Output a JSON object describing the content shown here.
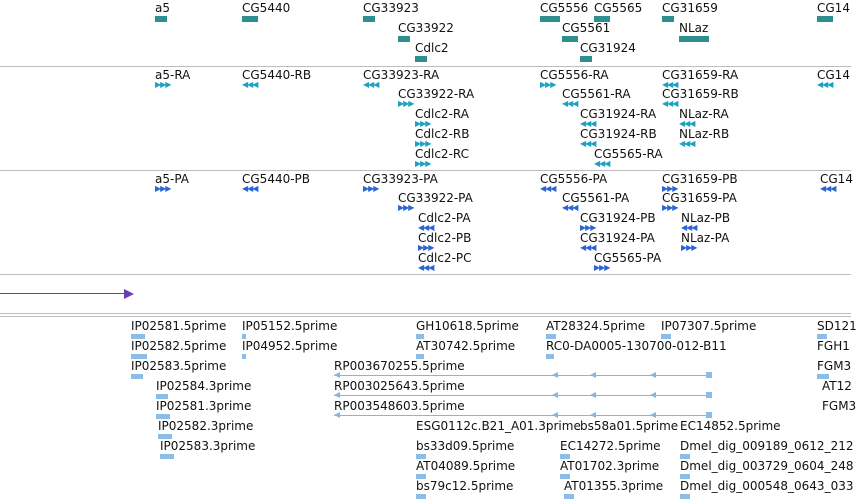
{
  "colors": {
    "gene": "#2f8f8f",
    "transcript": "#1ba1c1",
    "protein": "#2a64d6",
    "est": "#8bbde6",
    "ruler": "#6a3fb1",
    "separator": "#bdbdbd"
  },
  "genes": [
    {
      "label": "a5"
    },
    {
      "label": "CG5440"
    },
    {
      "label": "CG33923"
    },
    {
      "label": "CG5556"
    },
    {
      "label": "CG5565"
    },
    {
      "label": "CG31659"
    },
    {
      "label": "CG14"
    },
    {
      "label": "CG33922"
    },
    {
      "label": "CG5561"
    },
    {
      "label": "NLaz"
    },
    {
      "label": "Cdlc2"
    },
    {
      "label": "CG31924"
    }
  ],
  "transcripts": [
    {
      "label": "a5-RA"
    },
    {
      "label": "CG5440-RB"
    },
    {
      "label": "CG33923-RA"
    },
    {
      "label": "CG5556-RA"
    },
    {
      "label": "CG31659-RA"
    },
    {
      "label": "CG14"
    },
    {
      "label": "CG33922-RA"
    },
    {
      "label": "CG5561-RA"
    },
    {
      "label": "CG31659-RB"
    },
    {
      "label": "Cdlc2-RA"
    },
    {
      "label": "CG31924-RA"
    },
    {
      "label": "NLaz-RA"
    },
    {
      "label": "Cdlc2-RB"
    },
    {
      "label": "CG31924-RB"
    },
    {
      "label": "NLaz-RB"
    },
    {
      "label": "Cdlc2-RC"
    },
    {
      "label": "CG5565-RA"
    }
  ],
  "proteins": [
    {
      "label": "a5-PA"
    },
    {
      "label": "CG5440-PB"
    },
    {
      "label": "CG33923-PA"
    },
    {
      "label": "CG5556-PA"
    },
    {
      "label": "CG31659-PB"
    },
    {
      "label": "CG14"
    },
    {
      "label": "CG33922-PA"
    },
    {
      "label": "CG5561-PA"
    },
    {
      "label": "CG31659-PA"
    },
    {
      "label": "Cdlc2-PA"
    },
    {
      "label": "CG31924-PB"
    },
    {
      "label": "NLaz-PB"
    },
    {
      "label": "Cdlc2-PB"
    },
    {
      "label": "CG31924-PA"
    },
    {
      "label": "NLaz-PA"
    },
    {
      "label": "Cdlc2-PC"
    },
    {
      "label": "CG5565-PA"
    }
  ],
  "ests": [
    {
      "label": "IP02581.5prime"
    },
    {
      "label": "IP05152.5prime"
    },
    {
      "label": "GH10618.5prime"
    },
    {
      "label": "AT28324.5prime"
    },
    {
      "label": "IP07307.5prime"
    },
    {
      "label": "SD121"
    },
    {
      "label": "IP02582.5prime"
    },
    {
      "label": "IP04952.5prime"
    },
    {
      "label": "AT30742.5prime"
    },
    {
      "label": "RC0-DA0005-130700-012-B11"
    },
    {
      "label": "FGH1"
    },
    {
      "label": "IP02583.5prime"
    },
    {
      "label": "RP003670255.5prime"
    },
    {
      "label": "FGM3"
    },
    {
      "label": "IP02584.3prime"
    },
    {
      "label": "RP003025643.5prime"
    },
    {
      "label": "AT12"
    },
    {
      "label": "IP02581.3prime"
    },
    {
      "label": "RP003548603.5prime"
    },
    {
      "label": "FGM3"
    },
    {
      "label": "IP02582.3prime"
    },
    {
      "label": "ESG0112c.B21_A01.3prime"
    },
    {
      "label": "bs58a01.5prime"
    },
    {
      "label": "EC14852.5prime"
    },
    {
      "label": "IP02583.3prime"
    },
    {
      "label": "bs33d09.5prime"
    },
    {
      "label": "EC14272.5prime"
    },
    {
      "label": "Dmel_dig_009189_0612_212"
    },
    {
      "label": "AT04089.5prime"
    },
    {
      "label": "AT01702.3prime"
    },
    {
      "label": "Dmel_dig_003729_0604_248"
    },
    {
      "label": "bs79c12.5prime"
    },
    {
      "label": "AT01355.3prime"
    },
    {
      "label": "Dmel_dig_000548_0643_033"
    }
  ]
}
